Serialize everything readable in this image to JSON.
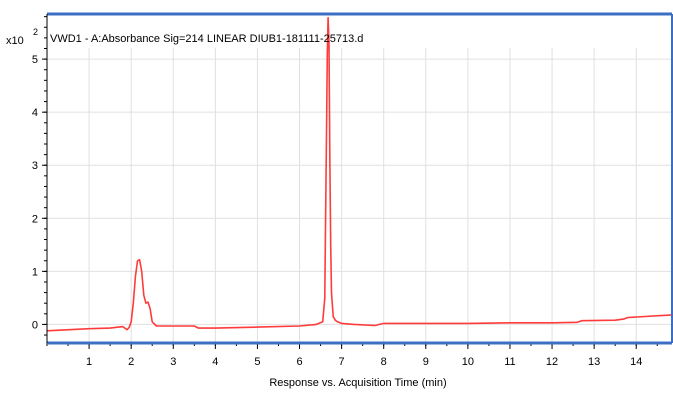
{
  "chart_data": {
    "type": "line",
    "title": "VWD1 - A:Absorbance Sig=214 LINEAR DIUB1-181111-25713.d",
    "y_multiplier": "x10",
    "y_multiplier_exp": "2",
    "xlabel": "Response vs. Acquisition Time (min)",
    "ylabel": "",
    "xlim": [
      0,
      14.85
    ],
    "ylim": [
      -0.35,
      5.85
    ],
    "x_ticks": [
      1,
      2,
      3,
      4,
      5,
      6,
      7,
      8,
      9,
      10,
      11,
      12,
      13,
      14
    ],
    "y_ticks": [
      0,
      1,
      2,
      3,
      4,
      5
    ],
    "grid": true,
    "frame_color": "#3b6fc4",
    "series": [
      {
        "color": "#ff3b3b",
        "x": [
          0.0,
          1.0,
          1.5,
          1.8,
          1.9,
          1.95,
          2.0,
          2.05,
          2.1,
          2.15,
          2.2,
          2.25,
          2.3,
          2.35,
          2.4,
          2.45,
          2.5,
          2.6,
          3.0,
          3.5,
          3.6,
          4.0,
          5.0,
          6.0,
          6.4,
          6.55,
          6.6,
          6.62,
          6.64,
          6.66,
          6.68,
          6.7,
          6.72,
          6.74,
          6.76,
          6.8,
          6.85,
          6.9,
          7.0,
          7.3,
          7.8,
          7.9,
          8.0,
          9.0,
          10.0,
          11.0,
          12.0,
          12.6,
          12.7,
          13.5,
          13.7,
          13.8,
          14.0,
          14.85
        ],
        "y": [
          -0.12,
          -0.08,
          -0.07,
          -0.04,
          -0.1,
          -0.06,
          0.05,
          0.4,
          0.9,
          1.2,
          1.22,
          1.0,
          0.55,
          0.4,
          0.42,
          0.3,
          0.05,
          -0.03,
          -0.03,
          -0.03,
          -0.07,
          -0.07,
          -0.05,
          -0.03,
          0.0,
          0.05,
          0.5,
          2.0,
          3.6,
          5.1,
          5.78,
          5.3,
          3.2,
          1.5,
          0.6,
          0.15,
          0.08,
          0.05,
          0.02,
          0.0,
          -0.02,
          0.0,
          0.02,
          0.02,
          0.02,
          0.03,
          0.03,
          0.04,
          0.07,
          0.08,
          0.1,
          0.13,
          0.14,
          0.18
        ]
      }
    ]
  }
}
